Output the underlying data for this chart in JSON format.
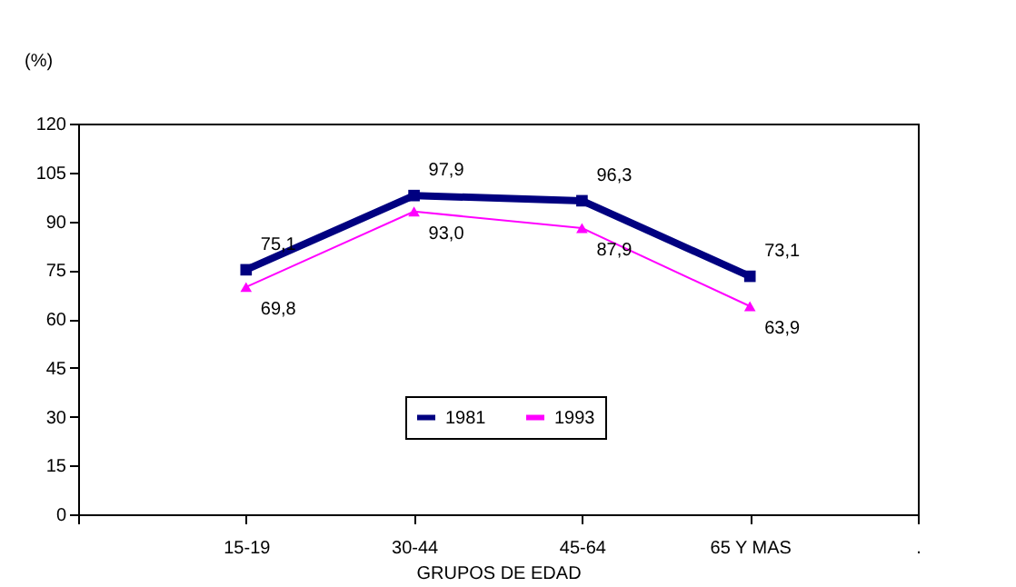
{
  "chart_data": {
    "type": "line",
    "ylabel": "(%)",
    "xlabel": "GRUPOS DE EDAD",
    "categories": [
      null,
      "15-19",
      "30-44",
      "45-64",
      "65 Y MAS",
      "."
    ],
    "ylim": [
      0,
      120
    ],
    "yticks": [
      0,
      15,
      30,
      45,
      60,
      75,
      90,
      105,
      120
    ],
    "grid": false,
    "legend": "bottom",
    "line_style": "solid",
    "series": [
      {
        "name": "1981",
        "color": "#000080",
        "marker": "square",
        "values": [
          null,
          75.1,
          97.9,
          96.3,
          73.1,
          null
        ],
        "value_labels": [
          null,
          "75,1",
          "97,9",
          "96,3",
          "73,1",
          null
        ]
      },
      {
        "name": "1993",
        "color": "#ff00ff",
        "marker": "triangle",
        "values": [
          null,
          69.8,
          93.0,
          87.9,
          63.9,
          null
        ],
        "value_labels": [
          null,
          "69,8",
          "93,0",
          "87,9",
          "63,9",
          null
        ]
      }
    ]
  }
}
